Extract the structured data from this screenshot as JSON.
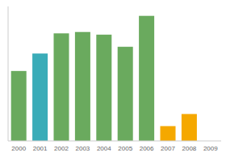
{
  "chart_data": {
    "type": "bar",
    "categories": [
      "2000",
      "2001",
      "2002",
      "2003",
      "2004",
      "2005",
      "2006",
      "2007",
      "2008",
      "2009"
    ],
    "values": [
      52,
      65,
      80,
      81,
      79,
      70,
      93,
      11,
      20,
      0
    ],
    "colors": [
      "#6aaa5e",
      "#3aacb8",
      "#6aaa5e",
      "#6aaa5e",
      "#6aaa5e",
      "#6aaa5e",
      "#6aaa5e",
      "#f5a800",
      "#f5a800",
      "#6aaa5e"
    ],
    "ylim": [
      0,
      100
    ],
    "grid": false,
    "tick_labels": "x"
  }
}
